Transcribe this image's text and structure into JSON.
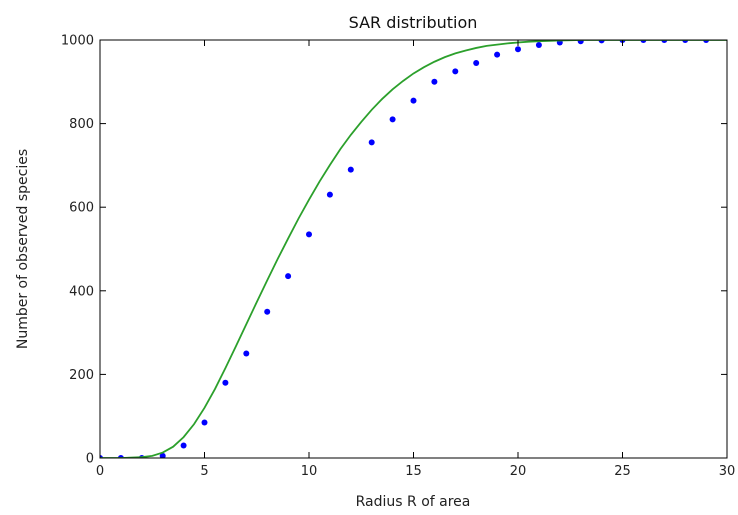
{
  "chart_data": {
    "type": "scatter",
    "title": "SAR distribution",
    "xlabel": "Radius R of area",
    "ylabel": "Number of observed species",
    "xlim": [
      0,
      30
    ],
    "ylim": [
      0,
      1000
    ],
    "xticks": [
      0,
      5,
      10,
      15,
      20,
      25,
      30
    ],
    "yticks": [
      0,
      200,
      400,
      600,
      800,
      1000
    ],
    "grid": false,
    "series": [
      {
        "mode": "markers",
        "color": "#0000ff",
        "x": [
          0,
          1,
          2,
          3,
          4,
          5,
          6,
          7,
          8,
          9,
          10,
          11,
          12,
          13,
          14,
          15,
          16,
          17,
          18,
          19,
          20,
          21,
          22,
          23,
          24,
          25,
          26,
          27,
          28,
          29
        ],
        "y": [
          0,
          0,
          0,
          5,
          30,
          85,
          180,
          250,
          350,
          435,
          535,
          630,
          690,
          755,
          810,
          855,
          900,
          925,
          945,
          965,
          978,
          988,
          994,
          997,
          999,
          1000,
          1000,
          1000,
          1000,
          1000
        ]
      },
      {
        "mode": "line",
        "color": "#2ca02c",
        "x": [
          0,
          1,
          2,
          2.5,
          3,
          3.5,
          4,
          4.5,
          5,
          5.5,
          6,
          6.5,
          7,
          7.5,
          8,
          8.5,
          9,
          9.5,
          10,
          10.5,
          11,
          11.5,
          12,
          12.5,
          13,
          13.5,
          14,
          14.5,
          15,
          15.5,
          16,
          16.5,
          17,
          17.5,
          18,
          18.5,
          19,
          19.5,
          20,
          20.5,
          21,
          21.5,
          22,
          23,
          24,
          25,
          26,
          27,
          28,
          29,
          30
        ],
        "y": [
          0,
          0,
          2,
          5,
          13,
          27,
          50,
          81,
          120,
          165,
          215,
          267,
          320,
          373,
          425,
          476,
          525,
          573,
          618,
          661,
          701,
          739,
          773,
          804,
          833,
          859,
          882,
          902,
          920,
          935,
          948,
          959,
          968,
          975,
          981,
          986,
          989,
          992,
          994,
          996,
          997,
          998,
          999,
          1000,
          1000,
          1000,
          1000,
          1000,
          1000,
          1000,
          1000
        ]
      }
    ]
  }
}
